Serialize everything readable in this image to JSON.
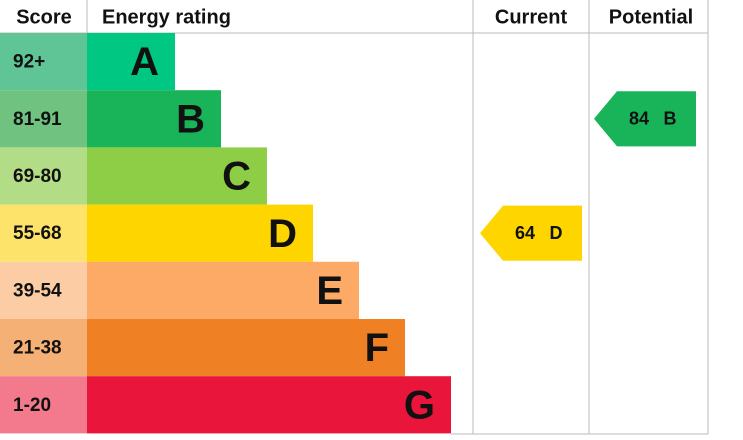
{
  "header": {
    "score": "Score",
    "rating": "Energy rating",
    "current": "Current",
    "potential": "Potential"
  },
  "bands": [
    {
      "score": "92+",
      "letter": "A",
      "color": "#00c781",
      "score_color": "#5fc597"
    },
    {
      "score": "81-91",
      "letter": "B",
      "color": "#19b459",
      "score_color": "#6fc27f"
    },
    {
      "score": "69-80",
      "letter": "C",
      "color": "#8dce46",
      "score_color": "#b2dc86"
    },
    {
      "score": "55-68",
      "letter": "D",
      "color": "#ffd500",
      "score_color": "#fde36a"
    },
    {
      "score": "39-54",
      "letter": "E",
      "color": "#fcaa65",
      "score_color": "#fccda4"
    },
    {
      "score": "21-38",
      "letter": "F",
      "color": "#ef8023",
      "score_color": "#f5b075"
    },
    {
      "score": "1-20",
      "letter": "G",
      "color": "#e9153b",
      "score_color": "#f27a8c"
    }
  ],
  "current": {
    "value": 64,
    "letter": "D"
  },
  "potential": {
    "value": 84,
    "letter": "B"
  }
}
